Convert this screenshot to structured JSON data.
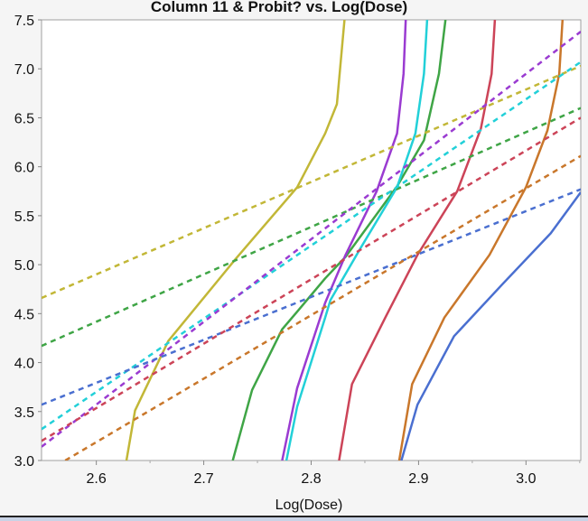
{
  "chart_data": {
    "type": "line",
    "title": "Column 11 & Probit? vs. Log(Dose)",
    "xlabel": "Log(Dose)",
    "ylabel": "",
    "xlim": [
      2.549,
      3.051
    ],
    "ylim": [
      3.0,
      7.5
    ],
    "xticks": [
      "2.6",
      "2.7",
      "2.8",
      "2.9",
      "3.0"
    ],
    "xtick_values": [
      2.6,
      2.7,
      2.8,
      2.9,
      3.0
    ],
    "yticks": [
      "3.0",
      "3.5",
      "4.0",
      "4.5",
      "5.0",
      "5.5",
      "6.0",
      "6.5",
      "7.0",
      "7.5"
    ],
    "ytick_values": [
      3.0,
      3.5,
      4.0,
      4.5,
      5.0,
      5.5,
      6.0,
      6.5,
      7.0,
      7.5
    ],
    "grid": false,
    "legend": "none",
    "curves": [
      {
        "name": "yellow-probit",
        "color": "#c2b737",
        "style": "solid",
        "points": [
          [
            2.628,
            3.0
          ],
          [
            2.636,
            3.51
          ],
          [
            2.667,
            4.22
          ],
          [
            2.729,
            5.05
          ],
          [
            2.787,
            5.79
          ],
          [
            2.813,
            6.34
          ],
          [
            2.824,
            6.64
          ],
          [
            2.831,
            7.5
          ]
        ]
      },
      {
        "name": "green-probit",
        "color": "#3fa546",
        "style": "solid",
        "points": [
          [
            2.727,
            3.0
          ],
          [
            2.745,
            3.72
          ],
          [
            2.773,
            4.34
          ],
          [
            2.787,
            4.52
          ],
          [
            2.813,
            4.86
          ],
          [
            2.832,
            5.08
          ],
          [
            2.88,
            5.8
          ],
          [
            2.905,
            6.27
          ],
          [
            2.919,
            6.95
          ],
          [
            2.925,
            7.5
          ]
        ]
      },
      {
        "name": "purple-probit",
        "color": "#9a3bd1",
        "style": "solid",
        "points": [
          [
            2.773,
            3.0
          ],
          [
            2.787,
            3.74
          ],
          [
            2.813,
            4.61
          ],
          [
            2.832,
            5.1
          ],
          [
            2.861,
            5.75
          ],
          [
            2.88,
            6.34
          ],
          [
            2.886,
            6.95
          ],
          [
            2.888,
            7.5
          ]
        ]
      },
      {
        "name": "cyan-probit",
        "color": "#22d0d8",
        "style": "solid",
        "points": [
          [
            2.777,
            3.0
          ],
          [
            2.787,
            3.55
          ],
          [
            2.813,
            4.46
          ],
          [
            2.818,
            4.64
          ],
          [
            2.846,
            5.17
          ],
          [
            2.88,
            5.79
          ],
          [
            2.897,
            6.34
          ],
          [
            2.905,
            6.95
          ],
          [
            2.908,
            7.5
          ]
        ]
      },
      {
        "name": "red-probit",
        "color": "#cc4458",
        "style": "solid",
        "points": [
          [
            2.826,
            3.0
          ],
          [
            2.838,
            3.78
          ],
          [
            2.869,
            4.46
          ],
          [
            2.899,
            5.1
          ],
          [
            2.936,
            5.75
          ],
          [
            2.958,
            6.39
          ],
          [
            2.968,
            6.95
          ],
          [
            2.971,
            7.5
          ]
        ]
      },
      {
        "name": "orange-probit",
        "color": "#c9772b",
        "style": "solid",
        "points": [
          [
            2.882,
            3.0
          ],
          [
            2.894,
            3.78
          ],
          [
            2.924,
            4.46
          ],
          [
            2.966,
            5.1
          ],
          [
            3.0,
            5.79
          ],
          [
            3.02,
            6.37
          ],
          [
            3.031,
            6.95
          ],
          [
            3.034,
            7.5
          ]
        ]
      },
      {
        "name": "blue-probit",
        "color": "#4a6fd0",
        "style": "solid",
        "points": [
          [
            2.884,
            3.0
          ],
          [
            2.899,
            3.57
          ],
          [
            2.933,
            4.27
          ],
          [
            2.978,
            4.8
          ],
          [
            3.023,
            5.32
          ],
          [
            3.051,
            5.74
          ]
        ]
      },
      {
        "name": "yellow-fit",
        "color": "#c2b737",
        "style": "dashed",
        "points": [
          [
            2.549,
            4.66
          ],
          [
            3.051,
            7.03
          ]
        ]
      },
      {
        "name": "green-fit",
        "color": "#3fa546",
        "style": "dashed",
        "points": [
          [
            2.549,
            4.17
          ],
          [
            3.051,
            6.6
          ]
        ]
      },
      {
        "name": "cyan-fit",
        "color": "#22d0d8",
        "style": "dashed",
        "points": [
          [
            2.549,
            3.32
          ],
          [
            3.051,
            7.07
          ]
        ]
      },
      {
        "name": "purple-fit",
        "color": "#9a3bd1",
        "style": "dashed",
        "points": [
          [
            2.549,
            3.14
          ],
          [
            3.051,
            7.38
          ]
        ]
      },
      {
        "name": "blue-fit",
        "color": "#4a6fd0",
        "style": "dashed",
        "points": [
          [
            2.549,
            3.57
          ],
          [
            3.051,
            5.77
          ]
        ]
      },
      {
        "name": "red-fit",
        "color": "#cc4458",
        "style": "dashed",
        "points": [
          [
            2.549,
            3.2
          ],
          [
            3.051,
            6.5
          ]
        ]
      },
      {
        "name": "orange-fit",
        "color": "#c9772b",
        "style": "dashed",
        "points": [
          [
            2.571,
            3.0
          ],
          [
            3.051,
            6.11
          ]
        ]
      }
    ]
  }
}
